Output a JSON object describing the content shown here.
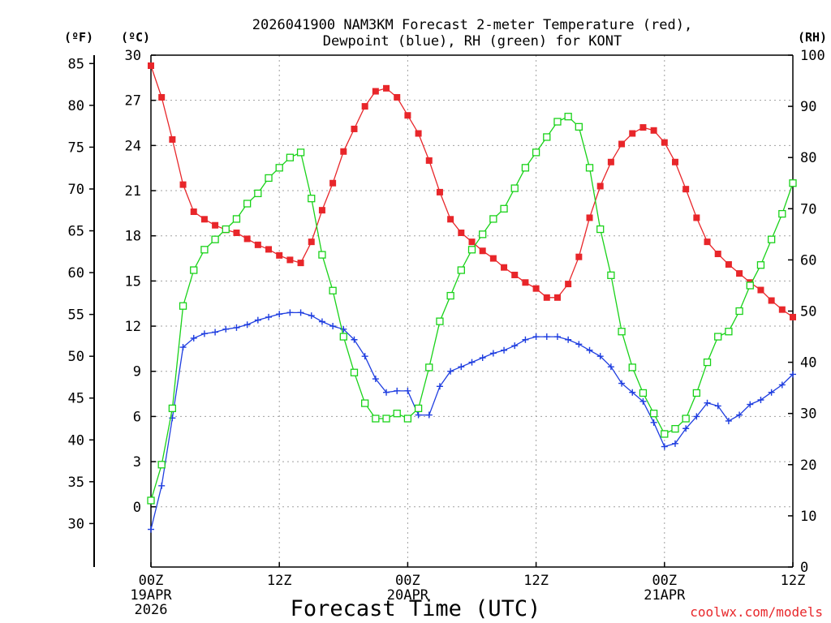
{
  "chart_data": {
    "type": "line",
    "title_line1": "2026041900 NAM3KM Forecast 2-meter Temperature (red),",
    "title_line2": "Dewpoint (blue), RH (green) for KONT",
    "unit_f": "(ºF)",
    "unit_c": "(ºC)",
    "unit_rh": "(RH)",
    "xlabel": "Forecast Time (UTC)",
    "credit": "coolwx.com/models",
    "x_range_hours": [
      0,
      60
    ],
    "c_range": [
      -4,
      30
    ],
    "rh_range": [
      0,
      100
    ],
    "c_ticks": [
      "30",
      "27",
      "24",
      "21",
      "18",
      "15",
      "12",
      "9",
      "6",
      "3",
      "0"
    ],
    "f_ticks": [
      "85",
      "80",
      "75",
      "70",
      "65",
      "60",
      "55",
      "50",
      "45",
      "40",
      "35",
      "30"
    ],
    "rh_ticks": [
      "100",
      "90",
      "80",
      "70",
      "60",
      "50",
      "40",
      "30",
      "20",
      "10",
      "0"
    ],
    "x_ticks": [
      {
        "hour": 0,
        "lines": [
          "00Z",
          "19APR",
          "2026"
        ]
      },
      {
        "hour": 12,
        "lines": [
          "12Z"
        ]
      },
      {
        "hour": 24,
        "lines": [
          "00Z",
          "20APR"
        ]
      },
      {
        "hour": 36,
        "lines": [
          "12Z"
        ]
      },
      {
        "hour": 48,
        "lines": [
          "00Z",
          "21APR"
        ]
      },
      {
        "hour": 60,
        "lines": [
          "12Z"
        ]
      }
    ],
    "colors": {
      "temperature": "#e8262a",
      "dewpoint": "#1f3ee0",
      "rh": "#19d219",
      "grid": "#a0a0a0"
    },
    "series": [
      {
        "name": "Temperature (C)",
        "axis": "celsius",
        "marker": "filled-square",
        "values": [
          [
            0,
            29.3
          ],
          [
            1,
            27.2
          ],
          [
            2,
            24.4
          ],
          [
            3,
            21.4
          ],
          [
            4,
            19.6
          ],
          [
            5,
            19.1
          ],
          [
            6,
            18.7
          ],
          [
            7,
            18.4
          ],
          [
            8,
            18.2
          ],
          [
            9,
            17.8
          ],
          [
            10,
            17.4
          ],
          [
            11,
            17.1
          ],
          [
            12,
            16.7
          ],
          [
            13,
            16.4
          ],
          [
            14,
            16.2
          ],
          [
            15,
            17.6
          ],
          [
            16,
            19.7
          ],
          [
            17,
            21.5
          ],
          [
            18,
            23.6
          ],
          [
            19,
            25.1
          ],
          [
            20,
            26.6
          ],
          [
            21,
            27.6
          ],
          [
            22,
            27.8
          ],
          [
            23,
            27.2
          ],
          [
            24,
            26.0
          ],
          [
            25,
            24.8
          ],
          [
            26,
            23.0
          ],
          [
            27,
            20.9
          ],
          [
            28,
            19.1
          ],
          [
            29,
            18.2
          ],
          [
            30,
            17.6
          ],
          [
            31,
            17.0
          ],
          [
            32,
            16.5
          ],
          [
            33,
            15.9
          ],
          [
            34,
            15.4
          ],
          [
            35,
            14.9
          ],
          [
            36,
            14.5
          ],
          [
            37,
            13.9
          ],
          [
            38,
            13.9
          ],
          [
            39,
            14.8
          ],
          [
            40,
            16.6
          ],
          [
            41,
            19.2
          ],
          [
            42,
            21.3
          ],
          [
            43,
            22.9
          ],
          [
            44,
            24.1
          ],
          [
            45,
            24.8
          ],
          [
            46,
            25.2
          ],
          [
            47,
            25.0
          ],
          [
            48,
            24.2
          ],
          [
            49,
            22.9
          ],
          [
            50,
            21.1
          ],
          [
            51,
            19.2
          ],
          [
            52,
            17.6
          ],
          [
            53,
            16.8
          ],
          [
            54,
            16.1
          ],
          [
            55,
            15.5
          ],
          [
            56,
            14.9
          ],
          [
            57,
            14.4
          ],
          [
            58,
            13.7
          ],
          [
            59,
            13.1
          ],
          [
            60,
            12.6
          ]
        ]
      },
      {
        "name": "Dewpoint (C)",
        "axis": "celsius",
        "marker": "plus",
        "values": [
          [
            0,
            -1.5
          ],
          [
            1,
            1.4
          ],
          [
            2,
            5.9
          ],
          [
            3,
            10.6
          ],
          [
            4,
            11.2
          ],
          [
            5,
            11.5
          ],
          [
            6,
            11.6
          ],
          [
            7,
            11.8
          ],
          [
            8,
            11.9
          ],
          [
            9,
            12.1
          ],
          [
            10,
            12.4
          ],
          [
            11,
            12.6
          ],
          [
            12,
            12.8
          ],
          [
            13,
            12.9
          ],
          [
            14,
            12.9
          ],
          [
            15,
            12.7
          ],
          [
            16,
            12.3
          ],
          [
            17,
            12.0
          ],
          [
            18,
            11.8
          ],
          [
            19,
            11.1
          ],
          [
            20,
            10.0
          ],
          [
            21,
            8.5
          ],
          [
            22,
            7.6
          ],
          [
            23,
            7.7
          ],
          [
            24,
            7.7
          ],
          [
            25,
            6.1
          ],
          [
            26,
            6.1
          ],
          [
            27,
            8.0
          ],
          [
            28,
            9.0
          ],
          [
            29,
            9.3
          ],
          [
            30,
            9.6
          ],
          [
            31,
            9.9
          ],
          [
            32,
            10.2
          ],
          [
            33,
            10.4
          ],
          [
            34,
            10.7
          ],
          [
            35,
            11.1
          ],
          [
            36,
            11.3
          ],
          [
            37,
            11.3
          ],
          [
            38,
            11.3
          ],
          [
            39,
            11.1
          ],
          [
            40,
            10.8
          ],
          [
            41,
            10.4
          ],
          [
            42,
            10.0
          ],
          [
            43,
            9.3
          ],
          [
            44,
            8.2
          ],
          [
            45,
            7.6
          ],
          [
            46,
            7.0
          ],
          [
            47,
            5.6
          ],
          [
            48,
            4.0
          ],
          [
            49,
            4.2
          ],
          [
            50,
            5.2
          ],
          [
            51,
            6.0
          ],
          [
            52,
            6.9
          ],
          [
            53,
            6.7
          ],
          [
            54,
            5.7
          ],
          [
            55,
            6.1
          ],
          [
            56,
            6.8
          ],
          [
            57,
            7.1
          ],
          [
            58,
            7.6
          ],
          [
            59,
            8.1
          ],
          [
            60,
            8.8
          ]
        ]
      },
      {
        "name": "RH (%)",
        "axis": "rh",
        "marker": "open-square",
        "values": [
          [
            0,
            13
          ],
          [
            1,
            20
          ],
          [
            2,
            31
          ],
          [
            3,
            51
          ],
          [
            4,
            58
          ],
          [
            5,
            62
          ],
          [
            6,
            64
          ],
          [
            7,
            66
          ],
          [
            8,
            68
          ],
          [
            9,
            71
          ],
          [
            10,
            73
          ],
          [
            11,
            76
          ],
          [
            12,
            78
          ],
          [
            13,
            80
          ],
          [
            14,
            81
          ],
          [
            15,
            72
          ],
          [
            16,
            61
          ],
          [
            17,
            54
          ],
          [
            18,
            45
          ],
          [
            19,
            38
          ],
          [
            20,
            32
          ],
          [
            21,
            29
          ],
          [
            22,
            29
          ],
          [
            23,
            30
          ],
          [
            24,
            29
          ],
          [
            25,
            31
          ],
          [
            26,
            39
          ],
          [
            27,
            48
          ],
          [
            28,
            53
          ],
          [
            29,
            58
          ],
          [
            30,
            62
          ],
          [
            31,
            65
          ],
          [
            32,
            68
          ],
          [
            33,
            70
          ],
          [
            34,
            74
          ],
          [
            35,
            78
          ],
          [
            36,
            81
          ],
          [
            37,
            84
          ],
          [
            38,
            87
          ],
          [
            39,
            88
          ],
          [
            40,
            86
          ],
          [
            41,
            78
          ],
          [
            42,
            66
          ],
          [
            43,
            57
          ],
          [
            44,
            46
          ],
          [
            45,
            39
          ],
          [
            46,
            34
          ],
          [
            47,
            30
          ],
          [
            48,
            26
          ],
          [
            49,
            27
          ],
          [
            50,
            29
          ],
          [
            51,
            34
          ],
          [
            52,
            40
          ],
          [
            53,
            45
          ],
          [
            54,
            46
          ],
          [
            55,
            50
          ],
          [
            56,
            55
          ],
          [
            57,
            59
          ],
          [
            58,
            64
          ],
          [
            59,
            69
          ],
          [
            60,
            75
          ]
        ]
      }
    ]
  }
}
